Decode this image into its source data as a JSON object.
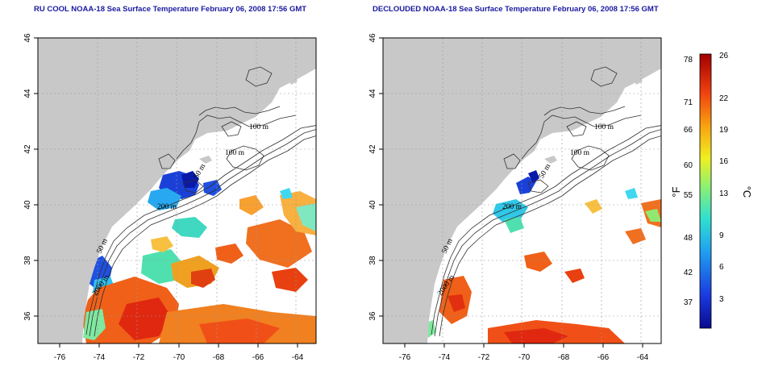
{
  "maps": [
    {
      "title": "RU COOL NOAA-18 Sea Surface Temperature February 06, 2008 17:56 GMT",
      "lon_range": [
        -77,
        -63
      ],
      "lat_range": [
        35,
        46
      ],
      "x_ticks": [
        "-76",
        "-74",
        "-72",
        "-70",
        "-68",
        "-66",
        "-64"
      ],
      "y_ticks": [
        "46",
        "44",
        "42",
        "40",
        "38",
        "36"
      ],
      "contour_labels": [
        "100 m",
        "100 m",
        "50 m",
        "200 m",
        "50 m",
        "2000 m"
      ]
    },
    {
      "title": "DECLOUDED NOAA-18 Sea Surface Temperature February 06, 2008 17:56 GMT",
      "lon_range": [
        -77,
        -63
      ],
      "lat_range": [
        35,
        46
      ],
      "x_ticks": [
        "-76",
        "-74",
        "-72",
        "-70",
        "-68",
        "-66",
        "-64"
      ],
      "y_ticks": [
        "46",
        "44",
        "42",
        "40",
        "38",
        "36"
      ],
      "contour_labels": [
        "100 m",
        "100 m",
        "50 m",
        "200 m",
        "50 m",
        "2000 m"
      ]
    }
  ],
  "colorbar": {
    "celsius_ticks": [
      "26",
      "22",
      "19",
      "16",
      "13",
      "9",
      "6",
      "3"
    ],
    "fahrenheit_ticks": [
      "78",
      "71",
      "66",
      "60",
      "55",
      "48",
      "42",
      "37"
    ],
    "celsius_unit": "°C",
    "fahrenheit_unit": "°F",
    "celsius_range": [
      0,
      26
    ]
  },
  "colors": {
    "land": "#c8c8c8",
    "title": "#1a1aa0",
    "cold": "#1010a0",
    "warm": "#a00000"
  }
}
